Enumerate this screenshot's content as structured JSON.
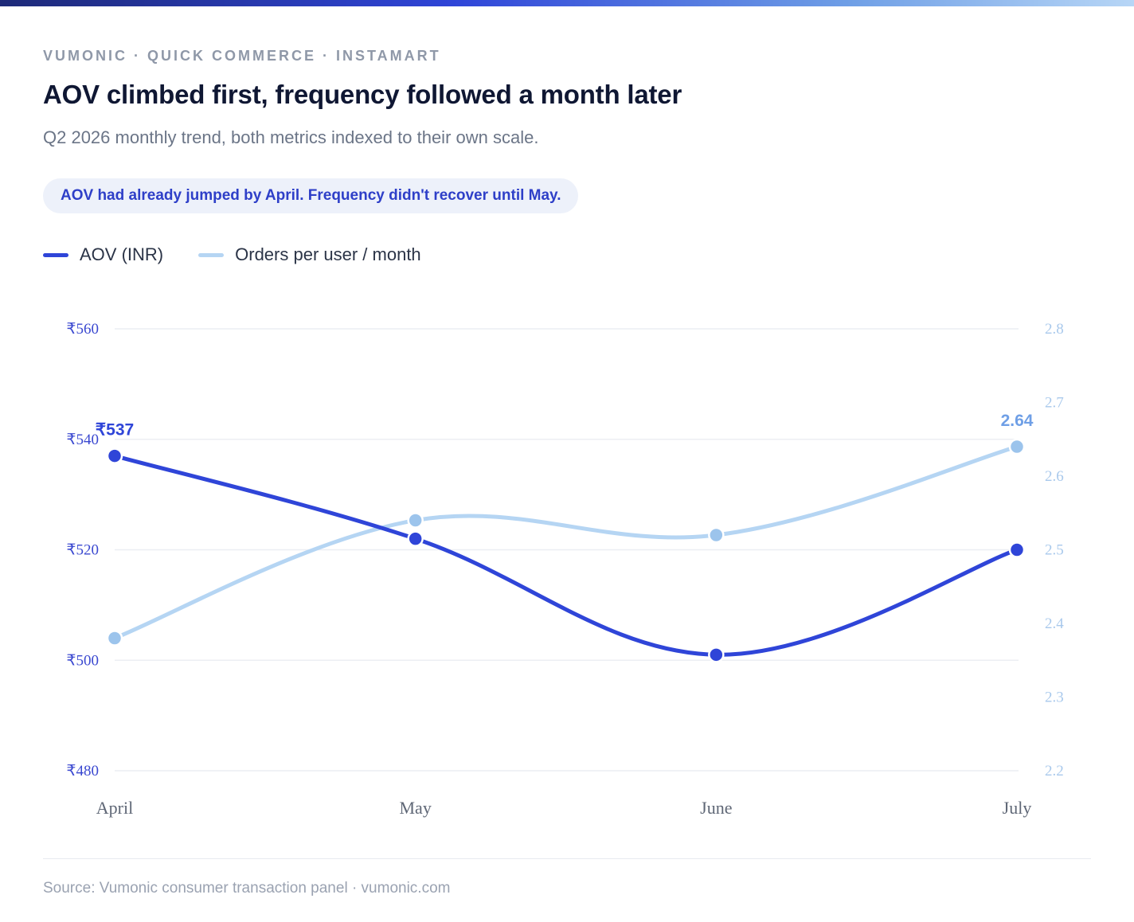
{
  "header": {
    "kicker": "VUMONIC · QUICK COMMERCE · INSTAMART",
    "title": "AOV climbed first, frequency followed a month later",
    "subtitle": "Q2 2026 monthly trend, both metrics indexed to their own scale.",
    "callout": "AOV had already jumped by April. Frequency didn't recover until May."
  },
  "legend": [
    {
      "label": "AOV (INR)",
      "color": "#2f45d8"
    },
    {
      "label": "Orders per user / month",
      "color": "#b5d5f3"
    }
  ],
  "footer": {
    "source": "Source: Vumonic consumer transaction panel · vumonic.com"
  },
  "colors": {
    "aov": "#2f45d8",
    "frequency": "#b5d5f3",
    "frequency_point": "#9cc4ec",
    "frequency_label": "#6f9fe6",
    "left_axis": "#3a48d0",
    "right_axis": "#a9c9ec",
    "grid": "#eceef3"
  },
  "chart_data": {
    "type": "line",
    "categories": [
      "April",
      "May",
      "June",
      "July"
    ],
    "series": [
      {
        "name": "AOV (INR)",
        "axis": "left",
        "values": [
          537,
          522,
          501,
          520
        ]
      },
      {
        "name": "Orders per user / month",
        "axis": "right",
        "values": [
          2.38,
          2.54,
          2.52,
          2.64
        ]
      }
    ],
    "left_axis": {
      "ticks": [
        "₹560",
        "₹540",
        "₹520",
        "₹500",
        "₹480"
      ],
      "tick_values": [
        560,
        540,
        520,
        500,
        480
      ],
      "ylim": [
        480,
        560
      ]
    },
    "right_axis": {
      "ticks": [
        "2.8",
        "2.7",
        "2.6",
        "2.5",
        "2.4",
        "2.3",
        "2.2"
      ],
      "tick_values": [
        2.8,
        2.7,
        2.6,
        2.5,
        2.4,
        2.3,
        2.2
      ],
      "ylim": [
        2.2,
        2.8
      ]
    },
    "annotations": [
      {
        "series": 0,
        "index": 0,
        "label": "₹537"
      },
      {
        "series": 1,
        "index": 3,
        "label": "2.64"
      }
    ],
    "grid": true,
    "legend_position": "top-left"
  }
}
